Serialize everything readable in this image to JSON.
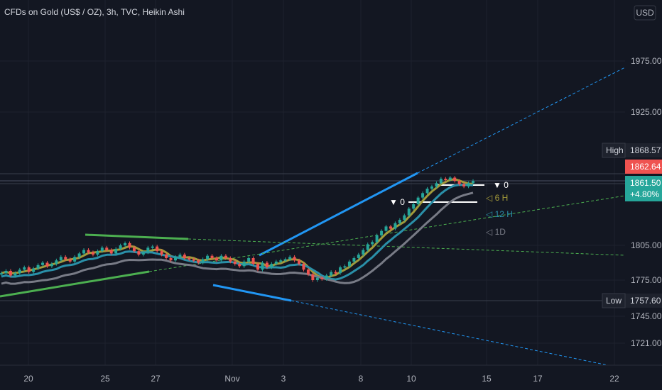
{
  "title": "CFDs on Gold (US$ / OZ), 3h, TVC, Heikin Ashi",
  "currency_button": "USD",
  "colors": {
    "background": "#131722",
    "grid": "#1e222d",
    "up_candle": "#26a69a",
    "down_candle": "#ef5350",
    "trendline_blue": "#2196f3",
    "trendline_green": "#4caf50",
    "ma_6h": "#a39a3a",
    "ma_12h": "#2a8fa8",
    "ma_1d": "#787b86"
  },
  "chart_data": {
    "type": "candlestick",
    "title": "CFDs on Gold (US$ / OZ), 3h, TVC, Heikin Ashi",
    "x_ticks": [
      "20",
      "25",
      "27",
      "Nov",
      "3",
      "8",
      "10",
      "15",
      "17",
      "22"
    ],
    "y_ticks": [
      1721.0,
      1745.0,
      1775.0,
      1805.0,
      1925.0,
      1975.0
    ],
    "ylim": [
      1708,
      2040
    ],
    "price_tags": [
      {
        "label": "High",
        "value": "1868.57",
        "kind": "high"
      },
      {
        "label": "",
        "value": "1862.64",
        "kind": "last"
      },
      {
        "label": "",
        "value": "1861.50",
        "sub": "+4.80%",
        "kind": "close"
      },
      {
        "label": "Low",
        "value": "1757.60",
        "kind": "low"
      }
    ],
    "ma_labels": [
      {
        "name": "▼ 0",
        "value": 1862
      },
      {
        "name": "▼ 0",
        "value": 1846
      },
      {
        "name": "◁ 6 H",
        "value": 1844
      },
      {
        "name": "◁ 12 H",
        "value": 1831
      },
      {
        "name": "◁ 1D",
        "value": 1817
      }
    ],
    "candles_close": [
      1781,
      1783,
      1779,
      1781,
      1784,
      1786,
      1782,
      1785,
      1788,
      1790,
      1787,
      1789,
      1792,
      1795,
      1793,
      1791,
      1795,
      1798,
      1801,
      1799,
      1797,
      1800,
      1803,
      1801,
      1798,
      1802,
      1805,
      1807,
      1803,
      1800,
      1797,
      1799,
      1803,
      1804,
      1800,
      1797,
      1794,
      1792,
      1795,
      1797,
      1794,
      1793,
      1792,
      1790,
      1793,
      1796,
      1794,
      1792,
      1796,
      1794,
      1791,
      1789,
      1787,
      1791,
      1794,
      1789,
      1784,
      1790,
      1786,
      1789,
      1791,
      1792,
      1793,
      1795,
      1792,
      1789,
      1784,
      1780,
      1775,
      1777,
      1776,
      1779,
      1782,
      1781,
      1786,
      1787,
      1791,
      1794,
      1797,
      1801,
      1806,
      1808,
      1814,
      1818,
      1822,
      1820,
      1825,
      1828,
      1832,
      1838,
      1842,
      1848,
      1852,
      1856,
      1858,
      1861,
      1865,
      1864,
      1866,
      1863,
      1860,
      1858,
      1861,
      1863
    ]
  }
}
